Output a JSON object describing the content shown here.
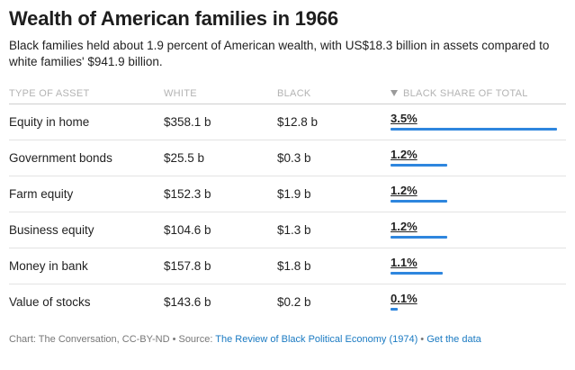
{
  "title": "Wealth of American families in 1966",
  "subtitle": "Black families held about 1.9 percent of American wealth, with US$18.3 billion in assets compared to white families' $941.9 billion.",
  "columns": {
    "type": "TYPE OF ASSET",
    "white": "WHITE",
    "black": "BLACK",
    "share": "BLACK SHARE OF TOTAL"
  },
  "rows": [
    {
      "type": "Equity in home",
      "white": "$358.1 b",
      "black": "$12.8 b",
      "share": "3.5%"
    },
    {
      "type": "Government bonds",
      "white": "$25.5 b",
      "black": "$0.3 b",
      "share": "1.2%"
    },
    {
      "type": "Farm equity",
      "white": "$152.3 b",
      "black": "$1.9 b",
      "share": "1.2%"
    },
    {
      "type": "Business equity",
      "white": "$104.6 b",
      "black": "$1.3 b",
      "share": "1.2%"
    },
    {
      "type": "Money in bank",
      "white": "$157.8 b",
      "black": "$1.8 b",
      "share": "1.1%"
    },
    {
      "type": "Value of stocks",
      "white": "$143.6 b",
      "black": "$0.2 b",
      "share": "0.1%"
    }
  ],
  "footer": {
    "credit": "Chart: The Conversation, CC-BY-ND • Source: ",
    "source_link": "The Review of Black Political Economy (1974)",
    "separator": " • ",
    "data_link": "Get the data"
  },
  "chart_data": {
    "type": "table",
    "title": "Wealth of American families in 1966",
    "categories": [
      "Equity in home",
      "Government bonds",
      "Farm equity",
      "Business equity",
      "Money in bank",
      "Value of stocks"
    ],
    "series": [
      {
        "name": "WHITE",
        "values": [
          358.1,
          25.5,
          152.3,
          104.6,
          157.8,
          143.6
        ]
      },
      {
        "name": "BLACK",
        "values": [
          12.8,
          0.3,
          1.9,
          1.3,
          1.8,
          0.2
        ]
      },
      {
        "name": "BLACK SHARE OF TOTAL",
        "values": [
          3.5,
          1.2,
          1.2,
          1.2,
          1.1,
          0.1
        ]
      }
    ],
    "bar_max": 3.5,
    "accent": "#2e86de"
  }
}
